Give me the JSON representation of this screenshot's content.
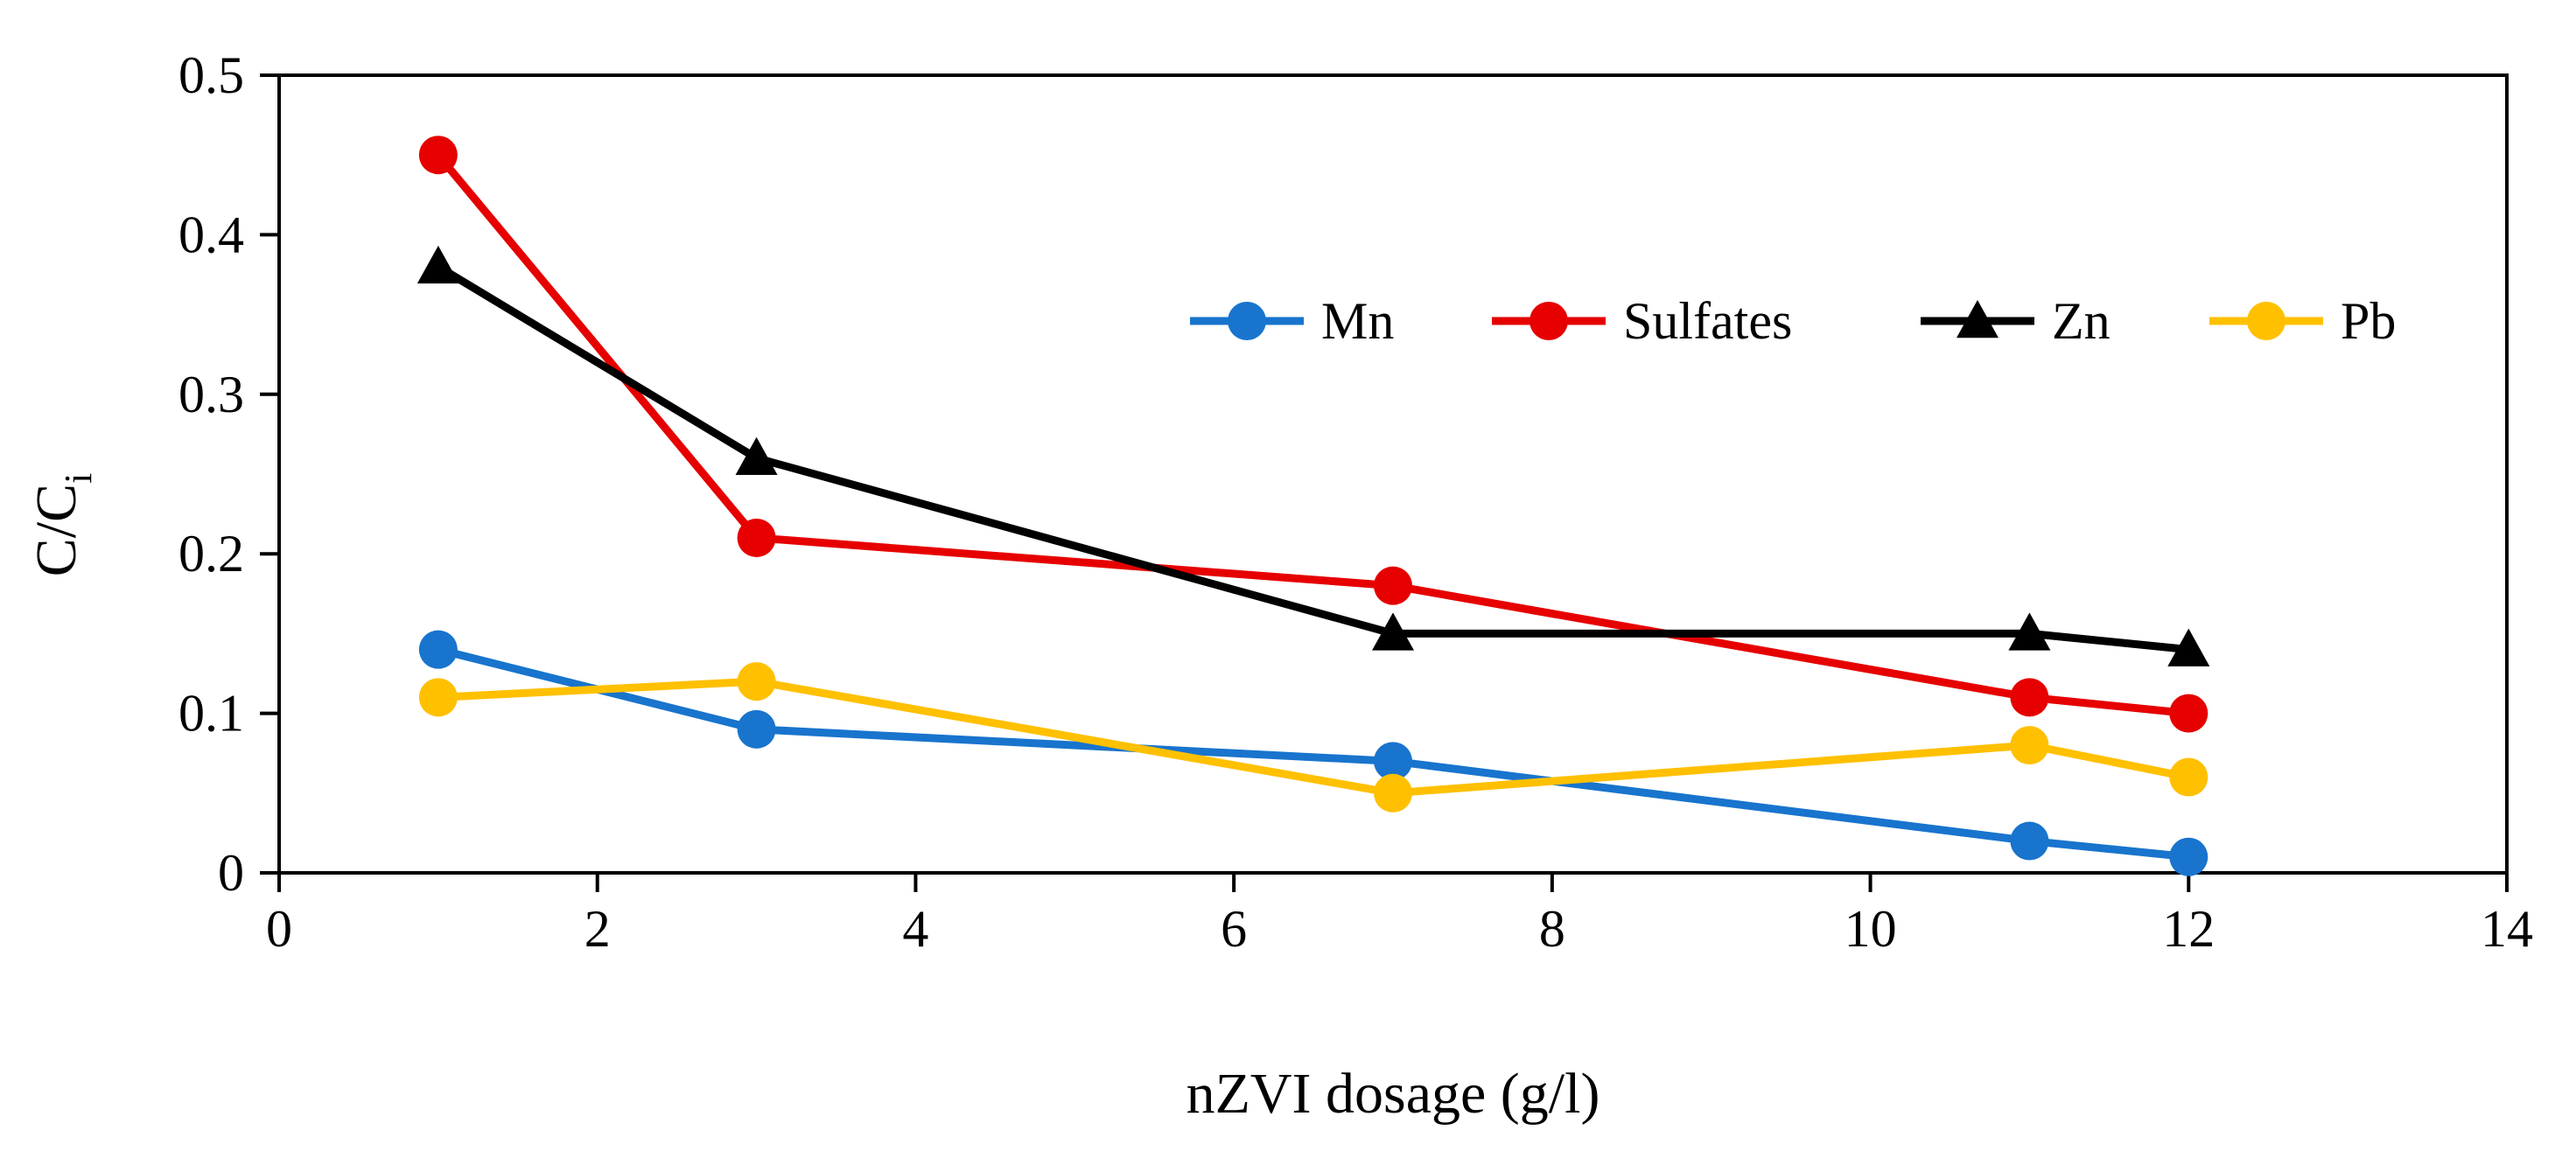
{
  "chart_data": {
    "type": "line",
    "title": "",
    "xlabel": "nZVI dosage (g/l)",
    "ylabel_main": "C/C",
    "ylabel_sub": "i",
    "xlim": [
      0,
      14
    ],
    "ylim": [
      0,
      0.5
    ],
    "x_ticks": [
      0,
      2,
      4,
      6,
      8,
      10,
      12,
      14
    ],
    "y_ticks": [
      0,
      0.1,
      0.2,
      0.3,
      0.4,
      0.5
    ],
    "x_tick_labels": [
      "0",
      "2",
      "4",
      "6",
      "8",
      "10",
      "12",
      "14"
    ],
    "y_tick_labels": [
      "0",
      "0.1",
      "0.2",
      "0.3",
      "0.4",
      "0.5"
    ],
    "grid": false,
    "legend_position": "top-right",
    "x": [
      1,
      3,
      7,
      11,
      12
    ],
    "series": [
      {
        "name": "Mn",
        "color": "#1874CD",
        "marker": "circle",
        "values": [
          0.14,
          0.09,
          0.07,
          0.02,
          0.01
        ]
      },
      {
        "name": "Sulfates",
        "color": "#E60000",
        "marker": "circle",
        "values": [
          0.45,
          0.21,
          0.18,
          0.11,
          0.1
        ]
      },
      {
        "name": "Zn",
        "color": "#000000",
        "marker": "triangle",
        "values": [
          0.38,
          0.26,
          0.15,
          0.15,
          0.14
        ]
      },
      {
        "name": "Pb",
        "color": "#FFC000",
        "marker": "circle",
        "values": [
          0.11,
          0.12,
          0.05,
          0.08,
          0.06
        ]
      }
    ]
  }
}
